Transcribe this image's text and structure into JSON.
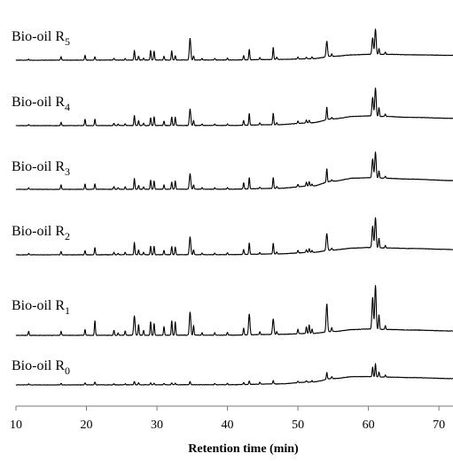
{
  "chart_data": {
    "type": "line",
    "title": "",
    "xlabel": "Retention time (min)",
    "ylabel": "",
    "xlim": [
      10,
      72
    ],
    "x_ticks": [
      10,
      20,
      30,
      40,
      50,
      60,
      70
    ],
    "legend": "none",
    "grid": false,
    "series": [
      {
        "name": "Bio-oil R",
        "subscript": "5",
        "baseline": [
          [
            10,
            0
          ],
          [
            40,
            0.4
          ],
          [
            47,
            1.5
          ],
          [
            52,
            3
          ],
          [
            55,
            8
          ],
          [
            58,
            11
          ],
          [
            60,
            12
          ],
          [
            63,
            12
          ],
          [
            66,
            11
          ],
          [
            72,
            10
          ]
        ],
        "peaks": [
          [
            11.8,
            2
          ],
          [
            16.4,
            7
          ],
          [
            19.8,
            10
          ],
          [
            21.2,
            7
          ],
          [
            23.9,
            4
          ],
          [
            25.5,
            3
          ],
          [
            26.8,
            20
          ],
          [
            27.4,
            8
          ],
          [
            28.1,
            4
          ],
          [
            29.1,
            20
          ],
          [
            29.6,
            18
          ],
          [
            31.0,
            8
          ],
          [
            32.1,
            19
          ],
          [
            32.6,
            9
          ],
          [
            34.7,
            45
          ],
          [
            35.2,
            8
          ],
          [
            36.4,
            3
          ],
          [
            38.2,
            3
          ],
          [
            40.0,
            4
          ],
          [
            42.3,
            9
          ],
          [
            43.1,
            22
          ],
          [
            44.6,
            4
          ],
          [
            46.5,
            25
          ],
          [
            47.0,
            5
          ],
          [
            50.0,
            4
          ],
          [
            51.2,
            3
          ],
          [
            52.0,
            4
          ],
          [
            54.1,
            32
          ],
          [
            54.8,
            5
          ],
          [
            60.6,
            34
          ],
          [
            61.0,
            52
          ],
          [
            61.5,
            12
          ],
          [
            62.4,
            5
          ]
        ]
      },
      {
        "name": "Bio-oil R",
        "subscript": "4",
        "baseline": [
          [
            10,
            0
          ],
          [
            40,
            0.4
          ],
          [
            47,
            2
          ],
          [
            52,
            6
          ],
          [
            55,
            14
          ],
          [
            58,
            19
          ],
          [
            60,
            20
          ],
          [
            62,
            19
          ],
          [
            66,
            17
          ],
          [
            72,
            15
          ]
        ],
        "peaks": [
          [
            11.8,
            2
          ],
          [
            16.4,
            7
          ],
          [
            19.8,
            13
          ],
          [
            21.2,
            13
          ],
          [
            23.9,
            5
          ],
          [
            24.5,
            3
          ],
          [
            25.5,
            4
          ],
          [
            26.8,
            21
          ],
          [
            27.4,
            10
          ],
          [
            28.1,
            5
          ],
          [
            29.1,
            16
          ],
          [
            29.6,
            18
          ],
          [
            31.0,
            9
          ],
          [
            32.1,
            18
          ],
          [
            32.6,
            17
          ],
          [
            34.7,
            34
          ],
          [
            35.2,
            10
          ],
          [
            36.4,
            3
          ],
          [
            38.2,
            3
          ],
          [
            40.0,
            3
          ],
          [
            42.3,
            10
          ],
          [
            43.1,
            24
          ],
          [
            44.6,
            4
          ],
          [
            46.5,
            24
          ],
          [
            47.0,
            4
          ],
          [
            50.0,
            5
          ],
          [
            51.2,
            6
          ],
          [
            51.6,
            5
          ],
          [
            54.1,
            26
          ],
          [
            54.8,
            3
          ],
          [
            60.6,
            38
          ],
          [
            61.0,
            58
          ],
          [
            61.5,
            18
          ],
          [
            62.4,
            5
          ]
        ]
      },
      {
        "name": "Bio-oil R",
        "subscript": "3",
        "baseline": [
          [
            10,
            0
          ],
          [
            40,
            0.4
          ],
          [
            47,
            2
          ],
          [
            52,
            7
          ],
          [
            55,
            17
          ],
          [
            58,
            23
          ],
          [
            60,
            24
          ],
          [
            62,
            23
          ],
          [
            66,
            21
          ],
          [
            72,
            18
          ]
        ],
        "peaks": [
          [
            11.8,
            3
          ],
          [
            16.4,
            9
          ],
          [
            19.8,
            11
          ],
          [
            21.2,
            11
          ],
          [
            23.9,
            6
          ],
          [
            24.5,
            3
          ],
          [
            25.5,
            5
          ],
          [
            26.8,
            22
          ],
          [
            27.4,
            8
          ],
          [
            28.1,
            5
          ],
          [
            29.1,
            19
          ],
          [
            29.6,
            17
          ],
          [
            31.0,
            9
          ],
          [
            32.1,
            15
          ],
          [
            32.6,
            17
          ],
          [
            34.7,
            32
          ],
          [
            35.2,
            9
          ],
          [
            36.4,
            3
          ],
          [
            38.2,
            3
          ],
          [
            40.0,
            3
          ],
          [
            42.3,
            13
          ],
          [
            43.1,
            23
          ],
          [
            44.6,
            3
          ],
          [
            46.5,
            23
          ],
          [
            47.0,
            4
          ],
          [
            50.0,
            5
          ],
          [
            51.2,
            8
          ],
          [
            51.6,
            9
          ],
          [
            52.0,
            4
          ],
          [
            54.1,
            28
          ],
          [
            54.8,
            3
          ],
          [
            60.6,
            39
          ],
          [
            61.0,
            53
          ],
          [
            61.5,
            15
          ],
          [
            62.4,
            4
          ]
        ]
      },
      {
        "name": "Bio-oil R",
        "subscript": "2",
        "baseline": [
          [
            10,
            0
          ],
          [
            40,
            0.4
          ],
          [
            47,
            2
          ],
          [
            52,
            5
          ],
          [
            55,
            10
          ],
          [
            58,
            14
          ],
          [
            60,
            15
          ],
          [
            63,
            14
          ],
          [
            66,
            13
          ],
          [
            72,
            11
          ]
        ],
        "peaks": [
          [
            11.8,
            3
          ],
          [
            16.4,
            7
          ],
          [
            19.8,
            9
          ],
          [
            21.2,
            15
          ],
          [
            23.9,
            5
          ],
          [
            24.5,
            3
          ],
          [
            25.5,
            5
          ],
          [
            26.8,
            25
          ],
          [
            27.4,
            10
          ],
          [
            28.1,
            5
          ],
          [
            29.1,
            18
          ],
          [
            29.6,
            17
          ],
          [
            31.0,
            9
          ],
          [
            32.1,
            17
          ],
          [
            32.6,
            16
          ],
          [
            34.7,
            37
          ],
          [
            35.2,
            10
          ],
          [
            36.4,
            3
          ],
          [
            38.2,
            3
          ],
          [
            40.0,
            4
          ],
          [
            42.3,
            10
          ],
          [
            43.1,
            24
          ],
          [
            44.6,
            3
          ],
          [
            46.5,
            22
          ],
          [
            47.0,
            4
          ],
          [
            50.0,
            5
          ],
          [
            51.2,
            6
          ],
          [
            51.6,
            8
          ],
          [
            52.0,
            4
          ],
          [
            54.1,
            35
          ],
          [
            54.8,
            4
          ],
          [
            60.6,
            44
          ],
          [
            61.0,
            62
          ],
          [
            61.5,
            20
          ],
          [
            62.4,
            5
          ]
        ]
      },
      {
        "name": "Bio-oil R",
        "subscript": "1",
        "baseline": [
          [
            10,
            0
          ],
          [
            40,
            0.4
          ],
          [
            47,
            2
          ],
          [
            52,
            4
          ],
          [
            55,
            8
          ],
          [
            58,
            12
          ],
          [
            60,
            13
          ],
          [
            63,
            12
          ],
          [
            66,
            11
          ],
          [
            72,
            9
          ]
        ],
        "peaks": [
          [
            11.8,
            8
          ],
          [
            16.4,
            8
          ],
          [
            19.8,
            12
          ],
          [
            21.2,
            30
          ],
          [
            23.9,
            10
          ],
          [
            24.5,
            5
          ],
          [
            25.5,
            9
          ],
          [
            26.8,
            40
          ],
          [
            27.4,
            22
          ],
          [
            28.1,
            10
          ],
          [
            29.1,
            28
          ],
          [
            29.6,
            24
          ],
          [
            31.0,
            18
          ],
          [
            32.1,
            30
          ],
          [
            32.6,
            27
          ],
          [
            34.7,
            48
          ],
          [
            35.2,
            20
          ],
          [
            36.4,
            5
          ],
          [
            38.2,
            5
          ],
          [
            40.0,
            6
          ],
          [
            42.3,
            14
          ],
          [
            43.1,
            43
          ],
          [
            44.6,
            6
          ],
          [
            46.5,
            32
          ],
          [
            47.0,
            6
          ],
          [
            50.0,
            9
          ],
          [
            51.2,
            14
          ],
          [
            51.6,
            18
          ],
          [
            52.0,
            9
          ],
          [
            54.1,
            58
          ],
          [
            54.8,
            8
          ],
          [
            60.6,
            65
          ],
          [
            61.0,
            90
          ],
          [
            61.5,
            30
          ],
          [
            62.4,
            8
          ]
        ]
      },
      {
        "name": "Bio-oil R",
        "subscript": "0",
        "baseline": [
          [
            10,
            0
          ],
          [
            40,
            0.4
          ],
          [
            47,
            2
          ],
          [
            52,
            6
          ],
          [
            55,
            13
          ],
          [
            58,
            17
          ],
          [
            60,
            17
          ],
          [
            63,
            16
          ],
          [
            66,
            15
          ],
          [
            72,
            13
          ]
        ],
        "peaks": [
          [
            11.8,
            2
          ],
          [
            16.4,
            3
          ],
          [
            19.8,
            4
          ],
          [
            21.2,
            6
          ],
          [
            23.9,
            2
          ],
          [
            25.5,
            2
          ],
          [
            26.8,
            7
          ],
          [
            27.4,
            4
          ],
          [
            29.1,
            4
          ],
          [
            29.6,
            3
          ],
          [
            31.0,
            3
          ],
          [
            32.1,
            4
          ],
          [
            32.6,
            3
          ],
          [
            34.7,
            7
          ],
          [
            38.2,
            2
          ],
          [
            40.0,
            3
          ],
          [
            42.3,
            4
          ],
          [
            43.1,
            7
          ],
          [
            44.6,
            4
          ],
          [
            46.5,
            7
          ],
          [
            50.0,
            3
          ],
          [
            51.2,
            3
          ],
          [
            52.0,
            3
          ],
          [
            54.1,
            14
          ],
          [
            54.8,
            4
          ],
          [
            60.6,
            20
          ],
          [
            61.0,
            27
          ],
          [
            61.5,
            10
          ],
          [
            62.4,
            4
          ]
        ]
      }
    ]
  }
}
